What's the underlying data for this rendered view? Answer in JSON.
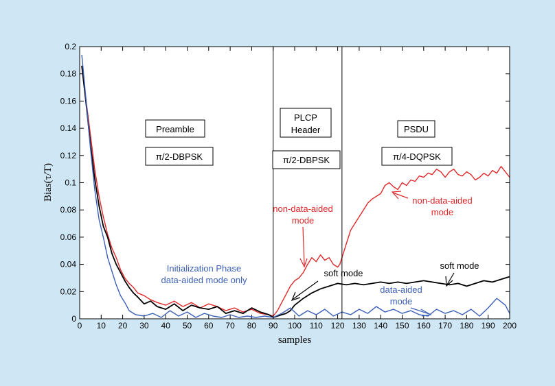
{
  "chart_data": {
    "type": "line",
    "title": "",
    "xlabel": "samples",
    "ylabel": "Bias(τ/T)",
    "xlim": [
      0,
      200
    ],
    "ylim": [
      0,
      0.2
    ],
    "grid": false,
    "xticks": [
      0,
      10,
      20,
      30,
      40,
      50,
      60,
      70,
      80,
      90,
      100,
      110,
      120,
      130,
      140,
      150,
      160,
      170,
      180,
      190,
      200
    ],
    "yticks": [
      0,
      0.02,
      0.04,
      0.06,
      0.08,
      0.1,
      0.12,
      0.14,
      0.16,
      0.18,
      0.2
    ],
    "ytick_labels": [
      "0",
      "0.02",
      "0.04",
      "0.06",
      "0.08",
      "0.1",
      "0.12",
      "0.14",
      "0.16",
      "0.18",
      "0.2"
    ],
    "vlines": [
      90,
      122
    ],
    "sections": [
      {
        "lines": [
          "Preamble"
        ],
        "modulation": "π/2-DBPSK"
      },
      {
        "lines": [
          "PLCP",
          "Header"
        ],
        "modulation": "π/2-DBPSK"
      },
      {
        "lines": [
          "PSDU"
        ],
        "modulation": "π/4-DQPSK"
      }
    ],
    "annotations": {
      "init_phase": [
        "Initialization Phase",
        "data-aided mode only"
      ],
      "nda_left": [
        "non-data-aided",
        "mode"
      ],
      "nda_right": [
        "non-data-aided",
        "mode"
      ],
      "soft_left": "soft mode",
      "soft_right": "soft mode",
      "da_right": [
        "data-aided",
        "mode"
      ]
    },
    "colors": {
      "red": "#e0282a",
      "black": "#000000",
      "blue": "#3b5fb8",
      "axes_bg": "#ffffff",
      "figure_bg": "#cfe6f4"
    },
    "series": [
      {
        "color": "red",
        "x": [
          1,
          3,
          5,
          7,
          9,
          11,
          13,
          15,
          17,
          19,
          21,
          23,
          25,
          27,
          30,
          33,
          36,
          40,
          44,
          48,
          52,
          56,
          60,
          64,
          68,
          72,
          76,
          80,
          84,
          88,
          90,
          92,
          94,
          96,
          98,
          100,
          102,
          104,
          106,
          108,
          110,
          112,
          114,
          116,
          118,
          120,
          121,
          122,
          124,
          126,
          128,
          130,
          132,
          134,
          136,
          138,
          140,
          142,
          144,
          146,
          148,
          150,
          152,
          154,
          156,
          158,
          160,
          162,
          164,
          166,
          168,
          170,
          172,
          174,
          176,
          178,
          180,
          182,
          184,
          186,
          188,
          190,
          192,
          194,
          196,
          198,
          200
        ],
        "y": [
          0.185,
          0.16,
          0.135,
          0.11,
          0.09,
          0.075,
          0.062,
          0.052,
          0.045,
          0.036,
          0.03,
          0.026,
          0.023,
          0.019,
          0.017,
          0.014,
          0.012,
          0.01,
          0.013,
          0.009,
          0.012,
          0.008,
          0.011,
          0.009,
          0.006,
          0.008,
          0.005,
          0.007,
          0.004,
          0.003,
          0.002,
          0.006,
          0.012,
          0.018,
          0.024,
          0.028,
          0.03,
          0.034,
          0.04,
          0.045,
          0.042,
          0.047,
          0.043,
          0.045,
          0.04,
          0.038,
          0.04,
          0.045,
          0.055,
          0.065,
          0.07,
          0.075,
          0.08,
          0.085,
          0.088,
          0.09,
          0.092,
          0.098,
          0.1,
          0.097,
          0.095,
          0.1,
          0.098,
          0.102,
          0.101,
          0.105,
          0.104,
          0.107,
          0.106,
          0.11,
          0.108,
          0.104,
          0.108,
          0.11,
          0.106,
          0.105,
          0.108,
          0.106,
          0.102,
          0.104,
          0.107,
          0.105,
          0.109,
          0.107,
          0.112,
          0.108,
          0.104
        ]
      },
      {
        "color": "black",
        "x": [
          1,
          3,
          5,
          7,
          9,
          11,
          13,
          15,
          17,
          19,
          21,
          23,
          25,
          27,
          30,
          33,
          36,
          40,
          44,
          48,
          52,
          56,
          60,
          64,
          68,
          72,
          76,
          80,
          84,
          88,
          90,
          92,
          94,
          96,
          98,
          100,
          104,
          108,
          112,
          116,
          120,
          124,
          128,
          132,
          136,
          140,
          144,
          148,
          152,
          156,
          160,
          164,
          168,
          172,
          176,
          180,
          184,
          188,
          192,
          196,
          200
        ],
        "y": [
          0.186,
          0.158,
          0.128,
          0.103,
          0.083,
          0.068,
          0.06,
          0.048,
          0.04,
          0.034,
          0.028,
          0.023,
          0.019,
          0.016,
          0.011,
          0.013,
          0.009,
          0.007,
          0.011,
          0.006,
          0.01,
          0.008,
          0.007,
          0.009,
          0.004,
          0.006,
          0.004,
          0.008,
          0.005,
          0.003,
          0.001,
          0.002,
          0.003,
          0.004,
          0.006,
          0.01,
          0.015,
          0.019,
          0.022,
          0.024,
          0.026,
          0.025,
          0.026,
          0.025,
          0.026,
          0.027,
          0.026,
          0.027,
          0.026,
          0.027,
          0.028,
          0.027,
          0.026,
          0.025,
          0.026,
          0.024,
          0.026,
          0.028,
          0.027,
          0.029,
          0.031
        ]
      },
      {
        "color": "blue",
        "x": [
          1,
          3,
          5,
          7,
          9,
          11,
          13,
          15,
          17,
          19,
          21,
          23,
          26,
          30,
          34,
          38,
          42,
          46,
          50,
          54,
          58,
          62,
          66,
          70,
          74,
          78,
          82,
          86,
          90,
          94,
          98,
          102,
          106,
          110,
          114,
          118,
          122,
          126,
          130,
          134,
          138,
          142,
          146,
          150,
          154,
          158,
          162,
          166,
          170,
          174,
          178,
          182,
          186,
          190,
          194,
          198,
          200
        ],
        "y": [
          0.194,
          0.16,
          0.125,
          0.095,
          0.073,
          0.06,
          0.045,
          0.035,
          0.025,
          0.017,
          0.012,
          0.006,
          0.003,
          0.002,
          0.004,
          0.001,
          0.006,
          0.002,
          0.005,
          0.001,
          0.004,
          0.002,
          0.001,
          0.003,
          0.001,
          0.002,
          0.001,
          0.002,
          0.001,
          0.004,
          0.008,
          0.002,
          0.006,
          0.003,
          0.007,
          0.002,
          0.005,
          0.003,
          0.007,
          0.004,
          0.009,
          0.005,
          0.007,
          0.004,
          0.006,
          0.003,
          0.002,
          0.007,
          0.004,
          0.006,
          0.003,
          0.007,
          0.002,
          0.008,
          0.015,
          0.01,
          0.004
        ]
      }
    ]
  }
}
